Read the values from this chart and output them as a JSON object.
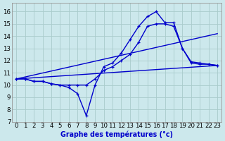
{
  "title": "Graphe des températures (°c)",
  "background_color": "#cce8ec",
  "grid_color": "#aacccc",
  "line_color": "#0000cc",
  "xlim": [
    -0.5,
    23.5
  ],
  "ylim": [
    7,
    16.7
  ],
  "xticks": [
    0,
    1,
    2,
    3,
    4,
    5,
    6,
    7,
    8,
    9,
    10,
    11,
    12,
    13,
    14,
    15,
    16,
    17,
    18,
    19,
    20,
    21,
    22,
    23
  ],
  "yticks": [
    7,
    8,
    9,
    10,
    11,
    12,
    13,
    14,
    15,
    16
  ],
  "series": [
    {
      "x": [
        0,
        1,
        2,
        3,
        4,
        5,
        6,
        7,
        8,
        9,
        10,
        11,
        12,
        13,
        14,
        15,
        16,
        17,
        18,
        19,
        20,
        21,
        22,
        23
      ],
      "y": [
        10.5,
        10.5,
        10.3,
        10.3,
        10.1,
        10.0,
        9.8,
        9.3,
        7.5,
        10.0,
        11.5,
        11.8,
        12.6,
        13.7,
        14.8,
        15.6,
        16.0,
        15.1,
        15.1,
        13.0,
        11.8,
        11.7,
        11.7,
        11.6
      ],
      "marker": true
    },
    {
      "x": [
        0,
        1,
        2,
        3,
        4,
        5,
        6,
        7,
        8,
        9,
        10,
        11,
        12,
        13,
        14,
        15,
        16,
        17,
        18,
        19,
        20,
        21,
        22,
        23
      ],
      "y": [
        10.5,
        10.5,
        10.3,
        10.3,
        10.1,
        10.0,
        10.0,
        10.0,
        10.0,
        10.5,
        11.2,
        11.5,
        12.0,
        12.5,
        13.5,
        14.8,
        15.0,
        15.0,
        14.8,
        13.0,
        11.9,
        11.8,
        11.7,
        11.6
      ],
      "marker": true
    },
    {
      "x": [
        0,
        23
      ],
      "y": [
        10.5,
        11.6
      ],
      "marker": false
    },
    {
      "x": [
        0,
        23
      ],
      "y": [
        10.5,
        14.2
      ],
      "marker": false
    }
  ],
  "figsize": [
    2.56,
    1.6
  ],
  "dpi": 125
}
